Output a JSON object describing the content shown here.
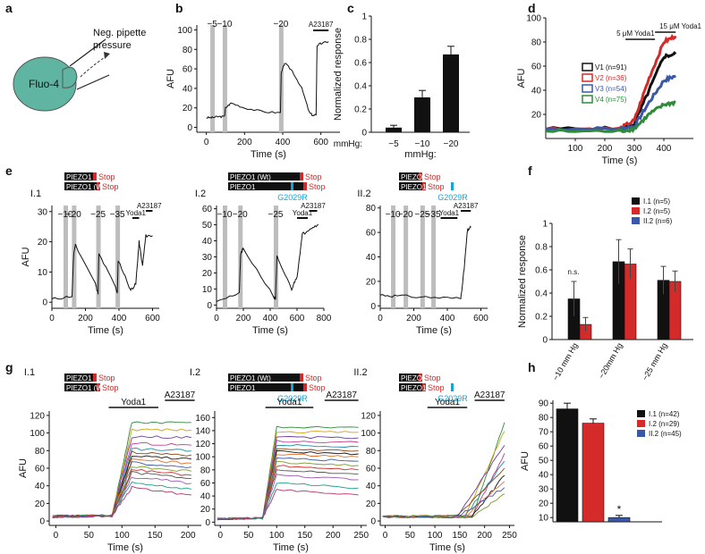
{
  "colors": {
    "cell": "#5fb4a2",
    "red": "#d42a2a",
    "blue": "#3b57a8",
    "green": "#2e8b3a",
    "black": "#111111",
    "cyan": "#17a3d6",
    "grey": "#bdbdbd"
  },
  "panel_labels": {
    "a": "a",
    "b": "b",
    "c": "c",
    "d": "d",
    "e": "e",
    "f": "f",
    "g": "g",
    "h": "h"
  },
  "panel_a": {
    "cell_label": "Fluo-4",
    "pipette_label_1": "Neg. pipette",
    "pipette_label_2": "pressure"
  },
  "constructs": {
    "piezo1": "PIEZO1",
    "wt": "PIEZO1 (Wt)",
    "stop": "Stop",
    "mutation": "G2029R"
  },
  "chart_data": [
    {
      "id": "b",
      "type": "line",
      "title": "",
      "ylabel": "AFU",
      "xlabel": "Time (s)",
      "xlim": [
        -50,
        700
      ],
      "ylim": [
        -5,
        105
      ],
      "xticks": [
        0,
        200,
        400,
        600
      ],
      "yticks": [
        0,
        20,
        40,
        60,
        80,
        100
      ],
      "stimuli": [
        {
          "label": "−5",
          "t": 30
        },
        {
          "label": "−10",
          "t": 95
        },
        {
          "label": "−20",
          "t": 390
        }
      ],
      "compound": {
        "label": "A23187",
        "start": 560,
        "end": 640
      },
      "series": [
        {
          "name": "trace",
          "x": [
            0,
            30,
            60,
            95,
            100,
            130,
            200,
            300,
            388,
            392,
            410,
            450,
            500,
            540,
            560,
            575,
            580,
            600,
            640
          ],
          "y": [
            10,
            10,
            11,
            11,
            20,
            25,
            20,
            16,
            15,
            55,
            66,
            58,
            40,
            15,
            12,
            13,
            84,
            86,
            88
          ]
        }
      ]
    },
    {
      "id": "c",
      "type": "bar",
      "ylabel": "Normalized response",
      "xlabel": "mmHg:",
      "ylim": [
        0,
        1.0
      ],
      "yticks": [
        0,
        0.2,
        0.4,
        0.6,
        0.8,
        1.0
      ],
      "categories": [
        "−5",
        "−10",
        "−20"
      ],
      "values": [
        0.04,
        0.3,
        0.67
      ],
      "errors": [
        0.02,
        0.06,
        0.07
      ]
    },
    {
      "id": "d",
      "type": "line",
      "ylabel": "AFU",
      "xlabel": "Time (s)",
      "xlim": [
        0,
        500
      ],
      "ylim": [
        0,
        100
      ],
      "xticks": [
        100,
        200,
        300,
        400
      ],
      "yticks": [
        20,
        40,
        60,
        80,
        100
      ],
      "annotations": [
        {
          "label": "5  μM Yoda1",
          "start": 270,
          "end": 370
        },
        {
          "label": "15 μM Yoda1",
          "start": 370,
          "end": 440
        }
      ],
      "series": [
        {
          "name": "V1 (n=91)",
          "color": "#111111",
          "x": [
            0,
            250,
            300,
            350,
            400,
            440
          ],
          "y": [
            8,
            8,
            12,
            40,
            68,
            70
          ]
        },
        {
          "name": "V2 (n=36)",
          "color": "#d42a2a",
          "x": [
            0,
            250,
            300,
            350,
            400,
            440
          ],
          "y": [
            8,
            8,
            15,
            50,
            80,
            85
          ]
        },
        {
          "name": "V3 (n=54)",
          "color": "#3b57a8",
          "x": [
            0,
            250,
            300,
            350,
            400,
            440
          ],
          "y": [
            8,
            8,
            10,
            30,
            48,
            52
          ]
        },
        {
          "name": "V4 (n=75)",
          "color": "#2e8b3a",
          "x": [
            0,
            250,
            300,
            350,
            400,
            440
          ],
          "y": [
            6,
            6,
            8,
            20,
            28,
            30
          ]
        }
      ]
    },
    {
      "id": "e1",
      "type": "line",
      "title": "I.1",
      "ylabel": "AFU",
      "xlabel": "Time (s)",
      "xlim": [
        0,
        640
      ],
      "ylim": [
        -2,
        32
      ],
      "xticks": [
        0,
        200,
        400,
        600
      ],
      "yticks": [
        0,
        10,
        20,
        30
      ],
      "stimuli": [
        {
          "label": "−10",
          "t": 80
        },
        {
          "label": "−20",
          "t": 130
        },
        {
          "label": "−25",
          "t": 275
        },
        {
          "label": "−35",
          "t": 390
        }
      ],
      "compounds": [
        {
          "label": "Yoda1",
          "start": 480,
          "end": 520
        },
        {
          "label": "A23187",
          "start": 560,
          "end": 600
        }
      ],
      "series": [
        {
          "name": "trace",
          "x": [
            0,
            120,
            130,
            140,
            260,
            275,
            280,
            380,
            390,
            395,
            470,
            500,
            520,
            540,
            560,
            600
          ],
          "y": [
            1,
            2,
            16,
            19,
            6,
            3,
            16,
            5,
            3,
            14,
            4,
            6,
            20,
            12,
            22,
            22
          ]
        }
      ]
    },
    {
      "id": "e2",
      "type": "line",
      "title": "I.2",
      "xlabel": "Time (s)",
      "xlim": [
        0,
        800
      ],
      "ylim": [
        -2,
        62
      ],
      "xticks": [
        0,
        200,
        400,
        600,
        800
      ],
      "yticks": [
        0,
        10,
        20,
        30,
        40,
        50,
        60
      ],
      "stimuli": [
        {
          "label": "−10",
          "t": 60
        },
        {
          "label": "−20",
          "t": 175
        },
        {
          "label": "−25",
          "t": 440
        }
      ],
      "compounds": [
        {
          "label": "Yoda1",
          "start": 600,
          "end": 680
        },
        {
          "label": "A23187",
          "start": 690,
          "end": 750
        }
      ],
      "series": [
        {
          "name": "trace",
          "x": [
            0,
            170,
            180,
            200,
            430,
            440,
            450,
            560,
            600,
            640,
            700,
            760
          ],
          "y": [
            3,
            7,
            32,
            35,
            5,
            4,
            30,
            10,
            18,
            44,
            48,
            50
          ]
        }
      ]
    },
    {
      "id": "e3",
      "type": "line",
      "title": "II.2",
      "xlabel": "Time (s)",
      "xlim": [
        0,
        640
      ],
      "ylim": [
        -2,
        82
      ],
      "xticks": [
        0,
        200,
        400,
        600
      ],
      "yticks": [
        0,
        20,
        40,
        60,
        80
      ],
      "stimuli": [
        {
          "label": "−10",
          "t": 75
        },
        {
          "label": "−20",
          "t": 150
        },
        {
          "label": "−25",
          "t": 250
        },
        {
          "label": "−35",
          "t": 315
        }
      ],
      "compounds": [
        {
          "label": "Yoda1",
          "start": 360,
          "end": 460
        },
        {
          "label": "A23187",
          "start": 480,
          "end": 540
        }
      ],
      "series": [
        {
          "name": "trace",
          "x": [
            0,
            100,
            300,
            480,
            500,
            520,
            540
          ],
          "y": [
            9,
            8,
            7,
            6,
            30,
            62,
            64
          ]
        }
      ]
    },
    {
      "id": "f",
      "type": "bar",
      "ylabel": "Normalized response",
      "ylim": [
        0,
        1.0
      ],
      "yticks": [
        0,
        0.2,
        0.4,
        0.6,
        0.8,
        1.0
      ],
      "categories": [
        "−10 mm Hg",
        "−20mm Hg",
        "−25 mm Hg"
      ],
      "annotations": [
        {
          "label": "n.s.",
          "category": "−10 mm Hg"
        }
      ],
      "series": [
        {
          "name": "I.1 (n=5)",
          "color": "#111111",
          "values": [
            0.35,
            0.67,
            0.51
          ],
          "errors": [
            0.15,
            0.19,
            0.12
          ]
        },
        {
          "name": "I.2 (n=5)",
          "color": "#d42a2a",
          "values": [
            0.13,
            0.65,
            0.5
          ],
          "errors": [
            0.06,
            0.13,
            0.09
          ]
        },
        {
          "name": "II.2 (n=6)",
          "color": "#3b57a8",
          "values": [
            0,
            0,
            0
          ],
          "errors": [
            0,
            0,
            0
          ]
        }
      ]
    },
    {
      "id": "g1",
      "type": "line",
      "title": "I.1",
      "ylabel": "AFU",
      "xlabel": "Time (s)",
      "xlim": [
        -10,
        220
      ],
      "ylim": [
        -5,
        125
      ],
      "xticks": [
        0,
        50,
        100,
        150,
        200
      ],
      "yticks": [
        0,
        20,
        40,
        60,
        80,
        100,
        120
      ],
      "compounds": [
        {
          "label": "Yoda1",
          "start": 80,
          "end": 155
        },
        {
          "label": "A23187",
          "start": 165,
          "end": 210
        }
      ],
      "levels": [
        112,
        104,
        96,
        88,
        82,
        78,
        74,
        70,
        66,
        62,
        58,
        55,
        50,
        44,
        38
      ],
      "rise": [
        85,
        115
      ]
    },
    {
      "id": "g2",
      "type": "line",
      "title": "I.2",
      "xlabel": "Time (s)",
      "xlim": [
        -10,
        260
      ],
      "ylim": [
        -5,
        170
      ],
      "xticks": [
        0,
        50,
        100,
        150,
        200,
        250
      ],
      "yticks": [
        0,
        20,
        40,
        60,
        80,
        100,
        120,
        140,
        160
      ],
      "compounds": [
        {
          "label": "Yoda1",
          "start": 80,
          "end": 165
        },
        {
          "label": "A23187",
          "start": 185,
          "end": 245
        }
      ],
      "levels": [
        145,
        138,
        130,
        124,
        118,
        112,
        108,
        104,
        98,
        92,
        86,
        80,
        72,
        60,
        50
      ],
      "rise": [
        75,
        100
      ]
    },
    {
      "id": "g3",
      "type": "line",
      "title": "II.2",
      "xlabel": "Time (s)",
      "xlim": [
        -10,
        260
      ],
      "ylim": [
        -5,
        125
      ],
      "xticks": [
        0,
        50,
        100,
        150,
        200,
        250
      ],
      "yticks": [
        0,
        20,
        40,
        60,
        80,
        100,
        120
      ],
      "compounds": [
        {
          "label": "Yoda1",
          "start": 85,
          "end": 165
        },
        {
          "label": "A23187",
          "start": 180,
          "end": 240
        }
      ],
      "levels": [
        112,
        105,
        92,
        86,
        80,
        75,
        70,
        66,
        62,
        58
      ],
      "rise": [
        175,
        240
      ]
    },
    {
      "id": "h",
      "type": "bar",
      "ylabel": "AFU",
      "ylim": [
        7,
        92
      ],
      "yticks": [
        10,
        20,
        30,
        40,
        50,
        60,
        70,
        80,
        90
      ],
      "categories": [
        "I.1 (n=42)",
        "I.2 (n=29)",
        "II.2 (n=45)"
      ],
      "values": [
        86,
        76,
        10
      ],
      "errors": [
        4,
        3,
        1.5
      ],
      "colors": [
        "#111111",
        "#d42a2a",
        "#3b57a8"
      ],
      "annotation": "*"
    }
  ]
}
